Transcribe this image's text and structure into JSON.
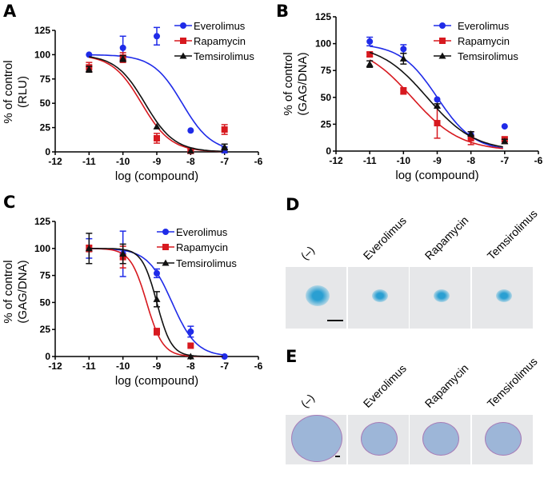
{
  "panels": {
    "a": "A",
    "b": "B",
    "c": "C",
    "d": "D",
    "e": "E"
  },
  "colors": {
    "Everolimus": "#1f2be8",
    "Rapamycin": "#d7191f",
    "Temsirolimus": "#111111"
  },
  "chart_data": [
    {
      "panel": "A",
      "type": "scatter",
      "xlabel": "log (compound)",
      "ylabel": [
        "% of control",
        "(RLU)"
      ],
      "xlim": [
        -12,
        -6
      ],
      "ylim": [
        0,
        125
      ],
      "xticks": [
        -12,
        -11,
        -10,
        -9,
        -8,
        -7,
        -6
      ],
      "yticks": [
        0,
        25,
        50,
        75,
        100,
        125
      ],
      "legend": "top-right",
      "grid": false,
      "x": [
        -11,
        -10,
        -9,
        -8,
        -7
      ],
      "series": [
        {
          "name": "Everolimus",
          "marker": "circle",
          "values": [
            100,
            107,
            119,
            22,
            2
          ],
          "errors": [
            1,
            12,
            9,
            1,
            3
          ],
          "fit": {
            "top": 100,
            "bottom": 0,
            "logIC50": -8.25,
            "hill": 1.0
          }
        },
        {
          "name": "Rapamycin",
          "marker": "square",
          "values": [
            87,
            97,
            14,
            1,
            23
          ],
          "errors": [
            5,
            5,
            5,
            2,
            5
          ],
          "fit": {
            "top": 100,
            "bottom": 0,
            "logIC50": -9.45,
            "hill": 1.0
          }
        },
        {
          "name": "Temsirolimus",
          "marker": "triangle",
          "values": [
            85,
            96,
            26,
            1,
            5
          ],
          "errors": [
            3,
            3,
            1,
            1,
            3
          ],
          "fit": {
            "top": 100,
            "bottom": 0,
            "logIC50": -9.35,
            "hill": 1.0
          }
        }
      ]
    },
    {
      "panel": "B",
      "type": "scatter",
      "xlabel": "log (compound)",
      "ylabel": [
        "% of control",
        "(GAG/DNA)"
      ],
      "xlim": [
        -12,
        -6
      ],
      "ylim": [
        0,
        125
      ],
      "xticks": [
        -12,
        -11,
        -10,
        -9,
        -8,
        -7,
        -6
      ],
      "yticks": [
        0,
        25,
        50,
        75,
        100,
        125
      ],
      "legend": "top-right",
      "grid": false,
      "x": [
        -11,
        -10,
        -9,
        -8,
        -7
      ],
      "series": [
        {
          "name": "Everolimus",
          "marker": "circle",
          "values": [
            102,
            95,
            48,
            15,
            23
          ],
          "errors": [
            4,
            4,
            1,
            3,
            1
          ],
          "fit": {
            "top": 100,
            "bottom": 0,
            "logIC50": -9.0,
            "hill": 0.8
          }
        },
        {
          "name": "Rapamycin",
          "marker": "square",
          "values": [
            90,
            56,
            26,
            12,
            11
          ],
          "errors": [
            2,
            3,
            14,
            6,
            2
          ],
          "fit": {
            "top": 100,
            "bottom": 0,
            "logIC50": -9.75,
            "hill": 0.6
          }
        },
        {
          "name": "Temsirolimus",
          "marker": "triangle",
          "values": [
            81,
            86,
            42,
            16,
            9
          ],
          "errors": [
            3,
            5,
            2,
            2,
            2
          ],
          "fit": {
            "top": 100,
            "bottom": 0,
            "logIC50": -9.3,
            "hill": 0.62
          }
        }
      ]
    },
    {
      "panel": "C",
      "type": "scatter",
      "xlabel": "log (compound)",
      "ylabel": [
        "% of control",
        "(GAG/DNA)"
      ],
      "xlim": [
        -12,
        -6
      ],
      "ylim": [
        0,
        125
      ],
      "xticks": [
        -12,
        -11,
        -10,
        -9,
        -8,
        -7,
        -6
      ],
      "yticks": [
        0,
        25,
        50,
        75,
        100,
        125
      ],
      "legend": "top-right",
      "grid": false,
      "x": [
        -11,
        -10,
        -9,
        -8,
        -7
      ],
      "series": [
        {
          "name": "Everolimus",
          "marker": "circle",
          "values": [
            100,
            95,
            77,
            23,
            0
          ],
          "errors": [
            9,
            21,
            4,
            5,
            1
          ],
          "fit": {
            "top": 100,
            "bottom": 0,
            "logIC50": -8.55,
            "hill": 1.2
          }
        },
        {
          "name": "Rapamycin",
          "marker": "square",
          "values": [
            100,
            92,
            23,
            10,
            null
          ],
          "errors": [
            3,
            10,
            3,
            1,
            0
          ],
          "fit": {
            "top": 100,
            "bottom": 0,
            "logIC50": -9.3,
            "hill": 1.8
          }
        },
        {
          "name": "Temsirolimus",
          "marker": "triangle",
          "values": [
            100,
            95,
            53,
            0,
            null
          ],
          "errors": [
            14,
            9,
            7,
            1,
            0
          ],
          "fit": {
            "top": 100,
            "bottom": 0,
            "logIC50": -9.0,
            "hill": 2.0
          }
        }
      ]
    }
  ],
  "images": {
    "d_labels": [
      "(–)",
      "Everolimus",
      "Rapamycin",
      "Temsirolimus"
    ],
    "e_labels": [
      "(–)",
      "Everolimus",
      "Rapamycin",
      "Temsirolimus"
    ]
  }
}
